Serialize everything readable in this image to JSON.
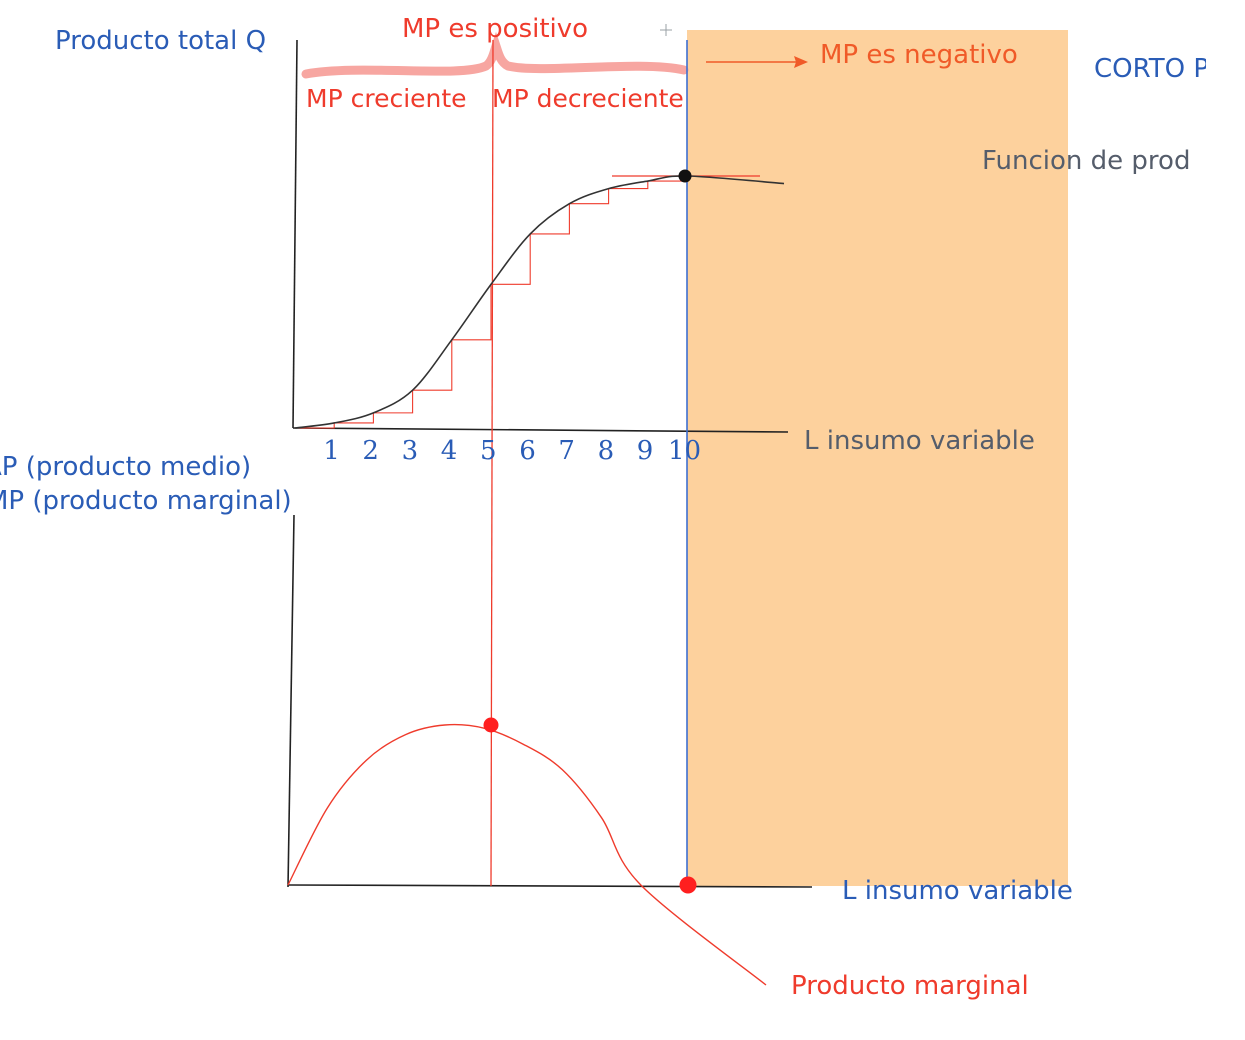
{
  "labels": {
    "top_y_axis": "Producto total Q",
    "mp_positive": "MP es positivo",
    "mp_increasing": "MP creciente",
    "mp_decreasing": "MP decreciente",
    "mp_negative": "MP es negativo",
    "corto": "CORTO P",
    "production_function": "Funcion de prod",
    "top_x_axis": "L insumo variable",
    "bottom_y_axis_line1": "AP (producto medio)",
    "bottom_y_axis_line2": "MP (producto marginal)",
    "bottom_x_axis": "L insumo variable",
    "marginal_product_curve": "Producto marginal"
  },
  "x_ticks": [
    "1",
    "2",
    "3",
    "4",
    "5",
    "6",
    "7",
    "8",
    "9",
    "10"
  ],
  "colors": {
    "blue": "#2a5cb6",
    "red": "#ef3b2c",
    "highlight": "#fdd19d",
    "brace": "#f7a6a1",
    "curve": "#333333"
  },
  "chart_data": {
    "type": "line",
    "x": [
      0,
      1,
      2,
      3,
      4,
      5,
      6,
      7,
      8,
      9,
      10,
      11
    ],
    "total_product_shape": [
      0,
      0.02,
      0.06,
      0.15,
      0.35,
      0.57,
      0.77,
      0.89,
      0.95,
      0.98,
      1.0,
      0.97
    ],
    "marginal_product_shape": [
      0,
      0.48,
      0.78,
      0.94,
      1.0,
      0.98,
      0.88,
      0.72,
      0.42,
      0.0,
      -0.62
    ],
    "inflection_x": 5,
    "max_total_product_x": 10,
    "max_marginal_product_x": 5,
    "zero_marginal_product_x": 10,
    "shaded_region": "x >= 10"
  }
}
